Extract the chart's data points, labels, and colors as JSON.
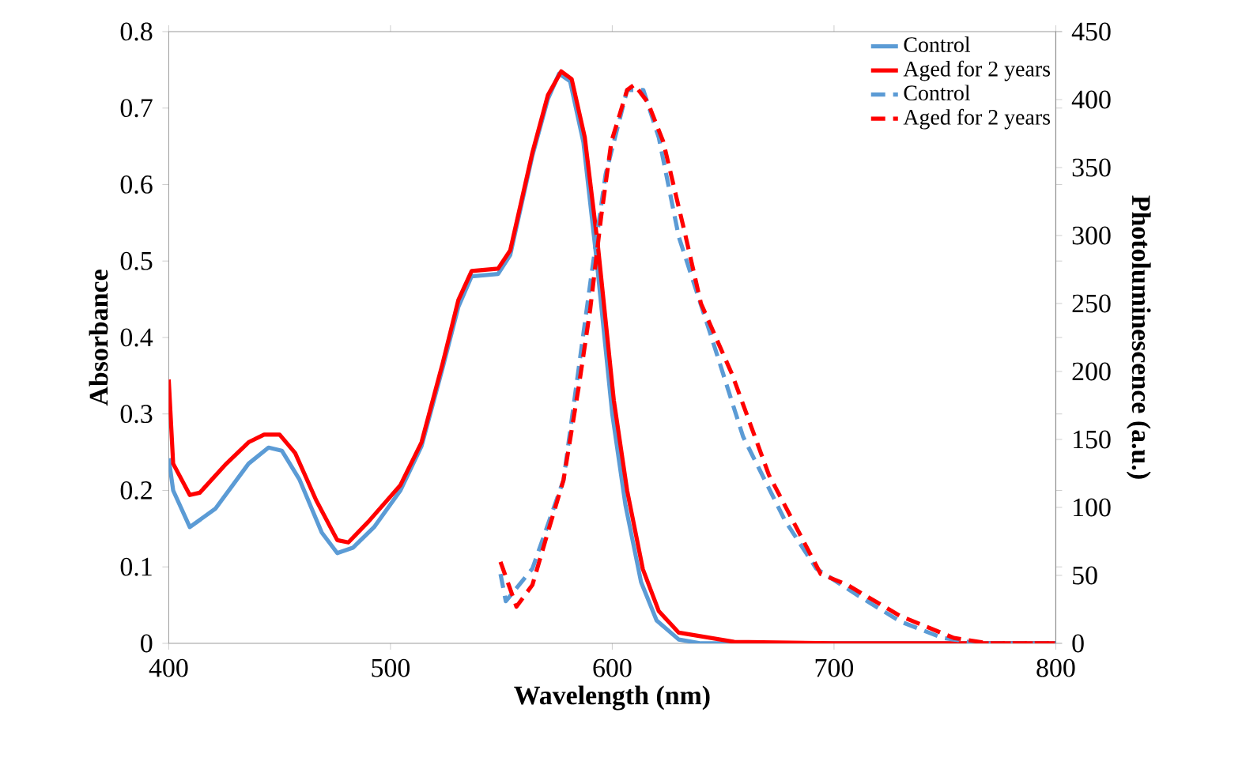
{
  "chart_data": {
    "type": "line",
    "xlabel": "Wavelength (nm)",
    "ylabel": "Absorbance",
    "y2label": "Photoluminescence (a.u.)",
    "xlim": [
      400,
      800
    ],
    "xticks": [
      400,
      500,
      600,
      700,
      800
    ],
    "ylim": [
      0,
      0.8
    ],
    "yticks": [
      0,
      0.1,
      0.2,
      0.3,
      0.4,
      0.5,
      0.6,
      0.7,
      0.8
    ],
    "y2lim": [
      0,
      450
    ],
    "y2ticks": [
      0,
      50,
      100,
      150,
      200,
      250,
      300,
      350,
      400,
      450
    ],
    "legend": "top right",
    "series": [
      {
        "name": "Control",
        "color": "#5b9bd5",
        "axis": "y",
        "line_style": "solid",
        "x": [
          400,
          402,
          409.5,
          421,
          436,
          445,
          451,
          459,
          469,
          476,
          483,
          492.6,
          504.5,
          514,
          523.5,
          530.6,
          536.6,
          548.5,
          554,
          564,
          571,
          576,
          581,
          587,
          593,
          600,
          606,
          613,
          620,
          630,
          640,
          700,
          800
        ],
        "values": [
          0.242,
          0.2,
          0.152,
          0.176,
          0.235,
          0.256,
          0.252,
          0.214,
          0.145,
          0.118,
          0.125,
          0.152,
          0.2,
          0.258,
          0.36,
          0.44,
          0.48,
          0.483,
          0.508,
          0.638,
          0.712,
          0.745,
          0.735,
          0.655,
          0.5,
          0.3,
          0.18,
          0.08,
          0.03,
          0.005,
          0,
          0,
          0
        ]
      },
      {
        "name": "Aged for 2 years",
        "color": "#ff0000",
        "axis": "y",
        "line_style": "solid",
        "x": [
          400,
          402,
          409.5,
          414,
          426,
          436,
          443,
          450,
          457,
          466.5,
          476,
          481,
          490,
          504.5,
          514,
          523.5,
          530.6,
          536.6,
          548.5,
          554,
          564,
          571,
          577,
          581.7,
          587.6,
          593.6,
          600.7,
          606.7,
          613.8,
          621,
          630,
          655,
          700,
          800
        ],
        "values": [
          0.345,
          0.235,
          0.194,
          0.197,
          0.235,
          0.263,
          0.273,
          0.273,
          0.249,
          0.187,
          0.135,
          0.132,
          0.159,
          0.207,
          0.263,
          0.366,
          0.449,
          0.487,
          0.49,
          0.514,
          0.642,
          0.717,
          0.748,
          0.738,
          0.662,
          0.518,
          0.318,
          0.2,
          0.097,
          0.042,
          0.014,
          0.002,
          0,
          0
        ]
      },
      {
        "name": "Control",
        "color": "#5b9bd5",
        "axis": "y2",
        "line_style": "dashed",
        "x": [
          549.6,
          552,
          564,
          578,
          590,
          597,
          606.7,
          614,
          621,
          630,
          644,
          659,
          678,
          692,
          711,
          730,
          749,
          765,
          800
        ],
        "values": [
          51,
          31,
          55,
          120,
          264,
          345,
          407,
          407,
          372,
          299,
          229,
          152,
          90,
          55,
          35,
          16,
          4,
          0,
          0
        ]
      },
      {
        "name": "Aged for 2 years",
        "color": "#ff0000",
        "axis": "y2",
        "line_style": "dashed",
        "x": [
          549.6,
          556.8,
          564,
          571,
          578,
          585,
          590,
          595,
          599.6,
          606.7,
          610,
          616,
          623,
          633,
          640,
          654,
          670.6,
          694,
          706,
          730,
          754,
          770,
          800
        ],
        "values": [
          60,
          27,
          43,
          82,
          120,
          190,
          245,
          314,
          369,
          407,
          411,
          398,
          369,
          300,
          250,
          198,
          124,
          51,
          43,
          20,
          4,
          0,
          0
        ]
      }
    ]
  }
}
